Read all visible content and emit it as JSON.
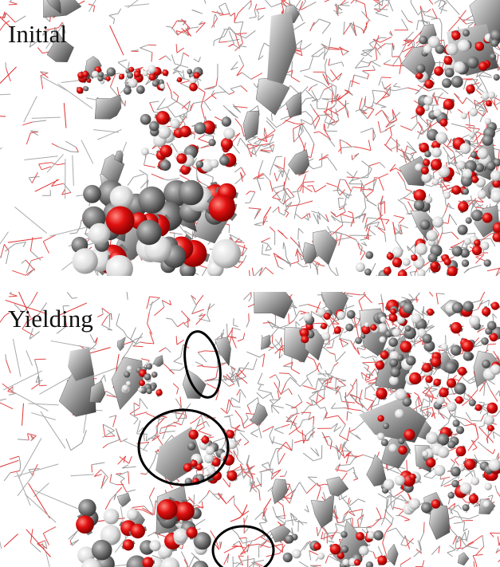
{
  "panels": [
    {
      "label": "Initial"
    },
    {
      "label": "Yielding"
    }
  ]
}
